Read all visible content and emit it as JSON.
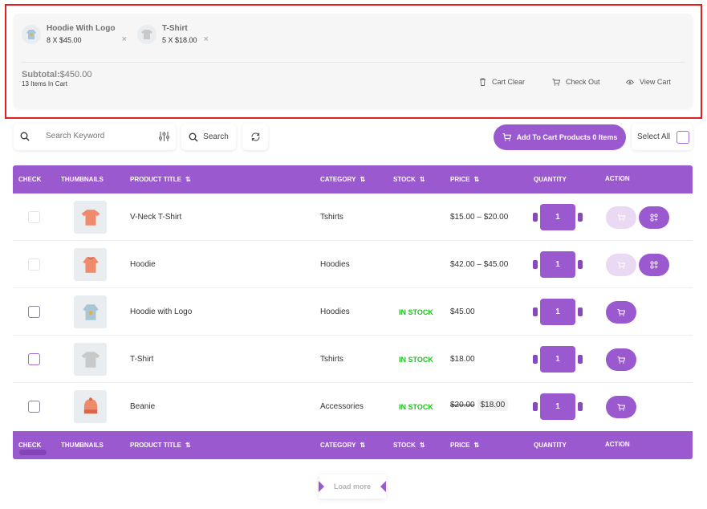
{
  "mini_cart": {
    "items": [
      {
        "name": "Hoodie With Logo",
        "qty": "8 X $45.00",
        "remove": "×"
      },
      {
        "name": "T-Shirt",
        "qty": "5 X $18.00",
        "remove": "×"
      }
    ],
    "subtotal_label": "Subtotal:",
    "subtotal_value": "$450.00",
    "items_count": "13 Items In Cart",
    "cart_clear": "Cart Clear",
    "check_out": "Check Out",
    "view_cart": "View Cart"
  },
  "toolbar": {
    "search_placeholder": "Search Keyword",
    "search_button": "Search",
    "add_to_cart_label": "Add To Cart Products 0 Items",
    "select_all": "Select All"
  },
  "table": {
    "headers": {
      "check": "CHECK",
      "thumbnails": "THUMBNAILS",
      "product_title": "PRODUCT TITLE",
      "category": "CATEGORY",
      "stock": "STOCK",
      "price": "PRICE",
      "quantity": "QUANTITY",
      "action": "ACTION"
    },
    "rows": [
      {
        "title": "V-Neck T-Shirt",
        "category": "Tshirts",
        "stock": "",
        "price": "$15.00 – $20.00",
        "quantity": "1",
        "thumb": "tshirt-orange"
      },
      {
        "title": "Hoodie",
        "category": "Hoodies",
        "stock": "",
        "price": "$42.00 – $45.00",
        "quantity": "1",
        "thumb": "hoodie-orange"
      },
      {
        "title": "Hoodie with Logo",
        "category": "Hoodies",
        "stock": "IN STOCK",
        "price": "$45.00",
        "quantity": "1",
        "thumb": "hoodie-blue"
      },
      {
        "title": "T-Shirt",
        "category": "Tshirts",
        "stock": "IN STOCK",
        "price": "$18.00",
        "quantity": "1",
        "thumb": "tshirt-grey"
      },
      {
        "title": "Beanie",
        "category": "Accessories",
        "stock": "IN STOCK",
        "price_old": "$20.00",
        "price_new": "$18.00",
        "quantity": "1",
        "thumb": "beanie-orange"
      }
    ]
  },
  "load_more": "Load more",
  "colors": {
    "accent": "#9b59d0",
    "in_stock": "#1ec31e",
    "highlight": "#e02020"
  }
}
